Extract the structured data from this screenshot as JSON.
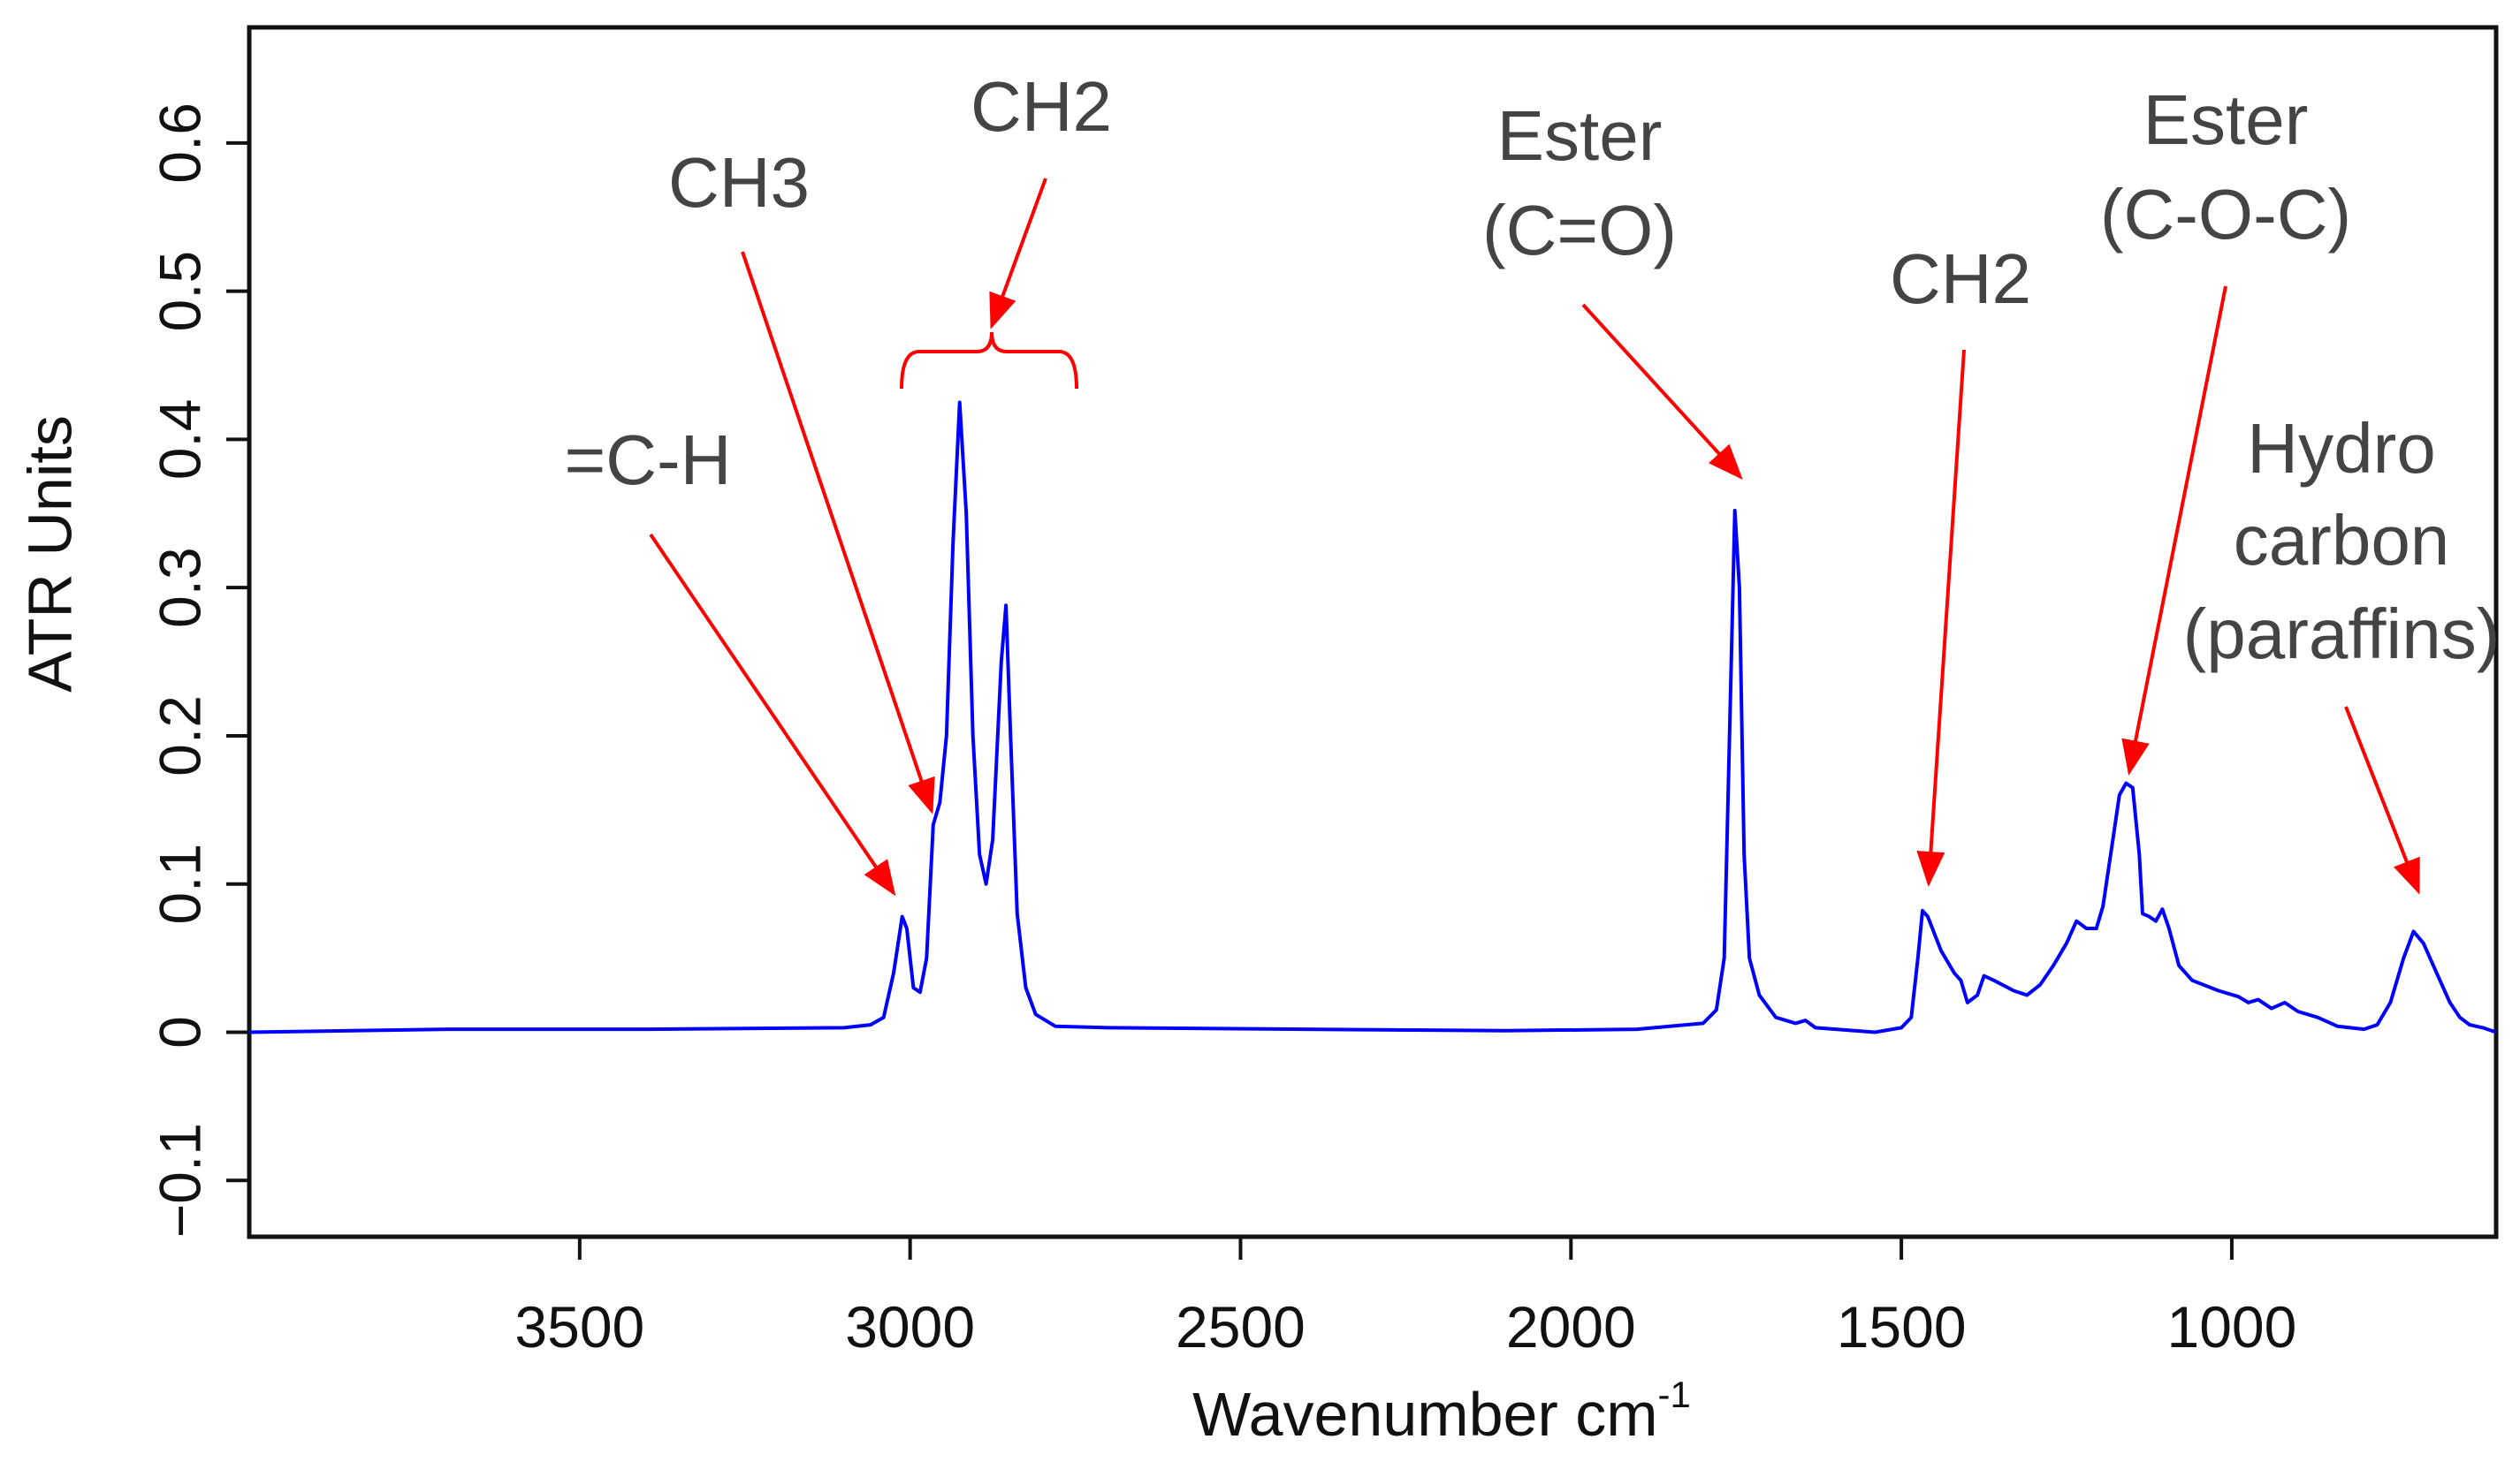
{
  "chart_data": {
    "type": "line",
    "title": "",
    "xlabel": "Wavenumber cm",
    "xlabel_superscript": "-1",
    "ylabel": "ATR Units",
    "xlim": [
      4000,
      600
    ],
    "ylim": [
      -0.138,
      0.678
    ],
    "x_reversed": true,
    "grid": false,
    "x_ticks": [
      3500,
      3000,
      2500,
      2000,
      1500,
      1000
    ],
    "x_tick_labels": [
      "3500",
      "3000",
      "2500",
      "2000",
      "1500",
      "1000"
    ],
    "y_ticks": [
      -0.1,
      0,
      0.1,
      0.2,
      0.3,
      0.4,
      0.5,
      0.6
    ],
    "y_tick_labels": [
      "−0.1",
      "0",
      "0.1",
      "0.2",
      "0.3",
      "0.4",
      "0.5",
      "0.6"
    ],
    "series": [
      {
        "color": "#0000ff",
        "points": [
          [
            4000,
            0.0
          ],
          [
            3700,
            0.002
          ],
          [
            3400,
            0.002
          ],
          [
            3100,
            0.003
          ],
          [
            3060,
            0.005
          ],
          [
            3040,
            0.01
          ],
          [
            3025,
            0.04
          ],
          [
            3012,
            0.078
          ],
          [
            3005,
            0.07
          ],
          [
            2995,
            0.03
          ],
          [
            2985,
            0.027
          ],
          [
            2975,
            0.05
          ],
          [
            2965,
            0.14
          ],
          [
            2955,
            0.155
          ],
          [
            2945,
            0.2
          ],
          [
            2935,
            0.33
          ],
          [
            2925,
            0.425
          ],
          [
            2915,
            0.35
          ],
          [
            2905,
            0.2
          ],
          [
            2895,
            0.12
          ],
          [
            2885,
            0.1
          ],
          [
            2875,
            0.13
          ],
          [
            2862,
            0.25
          ],
          [
            2855,
            0.288
          ],
          [
            2848,
            0.2
          ],
          [
            2838,
            0.08
          ],
          [
            2825,
            0.03
          ],
          [
            2810,
            0.012
          ],
          [
            2780,
            0.004
          ],
          [
            2700,
            0.003
          ],
          [
            2400,
            0.002
          ],
          [
            2100,
            0.001
          ],
          [
            1900,
            0.002
          ],
          [
            1800,
            0.006
          ],
          [
            1780,
            0.015
          ],
          [
            1768,
            0.05
          ],
          [
            1760,
            0.2
          ],
          [
            1752,
            0.352
          ],
          [
            1745,
            0.3
          ],
          [
            1738,
            0.12
          ],
          [
            1730,
            0.05
          ],
          [
            1715,
            0.025
          ],
          [
            1690,
            0.01
          ],
          [
            1660,
            0.006
          ],
          [
            1645,
            0.008
          ],
          [
            1630,
            0.003
          ],
          [
            1540,
            0.0
          ],
          [
            1500,
            0.003
          ],
          [
            1485,
            0.01
          ],
          [
            1475,
            0.05
          ],
          [
            1468,
            0.082
          ],
          [
            1460,
            0.078
          ],
          [
            1440,
            0.055
          ],
          [
            1420,
            0.04
          ],
          [
            1410,
            0.035
          ],
          [
            1400,
            0.02
          ],
          [
            1385,
            0.025
          ],
          [
            1375,
            0.038
          ],
          [
            1360,
            0.035
          ],
          [
            1330,
            0.028
          ],
          [
            1310,
            0.025
          ],
          [
            1290,
            0.032
          ],
          [
            1270,
            0.045
          ],
          [
            1250,
            0.06
          ],
          [
            1235,
            0.075
          ],
          [
            1220,
            0.07
          ],
          [
            1205,
            0.07
          ],
          [
            1195,
            0.085
          ],
          [
            1180,
            0.13
          ],
          [
            1170,
            0.16
          ],
          [
            1160,
            0.168
          ],
          [
            1150,
            0.165
          ],
          [
            1140,
            0.12
          ],
          [
            1135,
            0.08
          ],
          [
            1125,
            0.078
          ],
          [
            1115,
            0.075
          ],
          [
            1105,
            0.083
          ],
          [
            1095,
            0.07
          ],
          [
            1080,
            0.045
          ],
          [
            1060,
            0.035
          ],
          [
            1020,
            0.028
          ],
          [
            990,
            0.024
          ],
          [
            975,
            0.02
          ],
          [
            960,
            0.022
          ],
          [
            940,
            0.016
          ],
          [
            920,
            0.02
          ],
          [
            900,
            0.014
          ],
          [
            870,
            0.01
          ],
          [
            840,
            0.004
          ],
          [
            800,
            0.002
          ],
          [
            780,
            0.005
          ],
          [
            760,
            0.02
          ],
          [
            740,
            0.05
          ],
          [
            725,
            0.068
          ],
          [
            710,
            0.06
          ],
          [
            690,
            0.04
          ],
          [
            670,
            0.02
          ],
          [
            655,
            0.01
          ],
          [
            640,
            0.005
          ],
          [
            620,
            0.003
          ],
          [
            600,
            0.0
          ]
        ]
      }
    ],
    "annotation_color": "#ff0000",
    "annotations": [
      {
        "lines": [
          "=C-H"
        ]
      },
      {
        "lines": [
          "CH3"
        ]
      },
      {
        "lines": [
          "CH2"
        ]
      },
      {
        "lines": [
          "Ester",
          "(C=O)"
        ]
      },
      {
        "lines": [
          "CH2"
        ]
      },
      {
        "lines": [
          "Ester",
          "(C-O-C)"
        ]
      },
      {
        "lines": [
          "Hydro",
          "carbon",
          "(paraffins)"
        ]
      }
    ]
  }
}
